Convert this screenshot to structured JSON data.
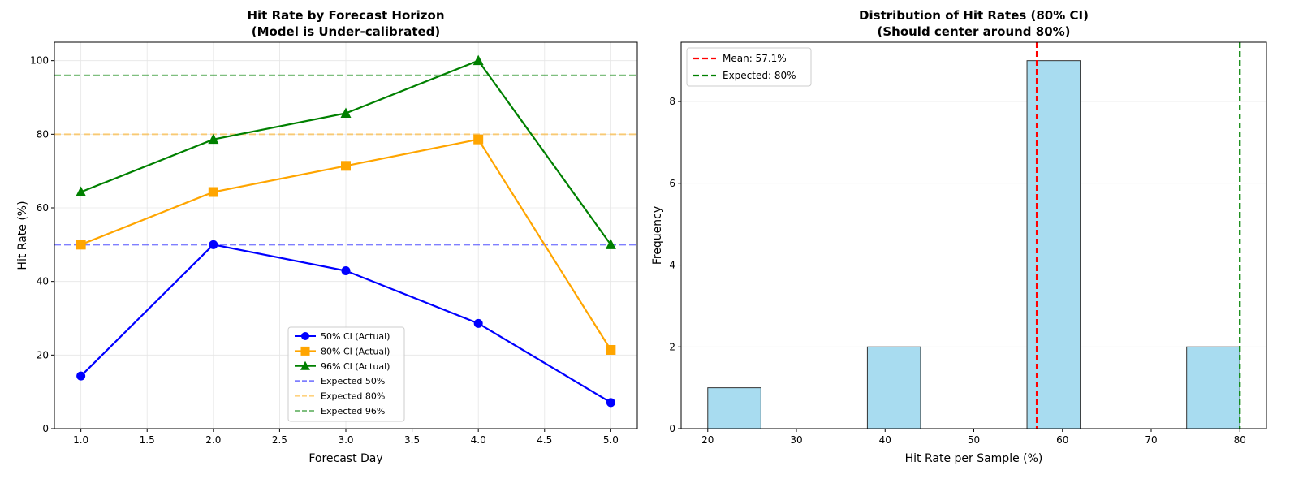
{
  "chart_data": [
    {
      "type": "line",
      "title": [
        "Hit Rate by Forecast Horizon",
        "(Model is Under-calibrated)"
      ],
      "xlabel": "Forecast Day",
      "ylabel": "Hit Rate (%)",
      "xlim": [
        0.8,
        5.2
      ],
      "ylim": [
        0,
        105
      ],
      "xticks": [
        "1.0",
        "1.5",
        "2.0",
        "2.5",
        "3.0",
        "3.5",
        "4.0",
        "4.5",
        "5.0"
      ],
      "yticks": [
        "0",
        "20",
        "40",
        "60",
        "80",
        "100"
      ],
      "x": [
        1,
        2,
        3,
        4,
        5
      ],
      "grid": true,
      "legend_position": "lower-center",
      "series": [
        {
          "name": "50% CI (Actual)",
          "values": [
            14.3,
            50.0,
            42.9,
            28.6,
            7.1
          ],
          "color": "#0000ff",
          "marker": "circle"
        },
        {
          "name": "80% CI (Actual)",
          "values": [
            50.0,
            64.3,
            71.4,
            78.6,
            21.4
          ],
          "color": "#ffa500",
          "marker": "square"
        },
        {
          "name": "96% CI (Actual)",
          "values": [
            64.3,
            78.6,
            85.7,
            100.0,
            50.0
          ],
          "color": "#008000",
          "marker": "triangle"
        }
      ],
      "reference_lines": [
        {
          "name": "Expected 50%",
          "y": 50,
          "color": "#0000ff"
        },
        {
          "name": "Expected 80%",
          "y": 80,
          "color": "#ffa500"
        },
        {
          "name": "Expected 96%",
          "y": 96,
          "color": "#008000"
        }
      ]
    },
    {
      "type": "bar",
      "title": [
        "Distribution of Hit Rates (80% CI)",
        "(Should center around 80%)"
      ],
      "xlabel": "Hit Rate per Sample (%)",
      "ylabel": "Frequency",
      "xlim": [
        17,
        83
      ],
      "ylim": [
        0,
        9.45
      ],
      "xticks": [
        "20",
        "30",
        "40",
        "50",
        "60",
        "70",
        "80"
      ],
      "yticks": [
        "0",
        "2",
        "4",
        "6",
        "8"
      ],
      "grid": true,
      "legend_position": "top-left",
      "bins": [
        {
          "start": 20,
          "end": 26,
          "count": 1
        },
        {
          "start": 38,
          "end": 44,
          "count": 2
        },
        {
          "start": 56,
          "end": 62,
          "count": 9
        },
        {
          "start": 74,
          "end": 80,
          "count": 2
        }
      ],
      "bar_color": "#a8dcf0",
      "vlines": [
        {
          "label": "Mean: 57.1%",
          "x": 57.1,
          "color": "#ff0000"
        },
        {
          "label": "Expected: 80%",
          "x": 80,
          "color": "#008000"
        }
      ]
    }
  ]
}
